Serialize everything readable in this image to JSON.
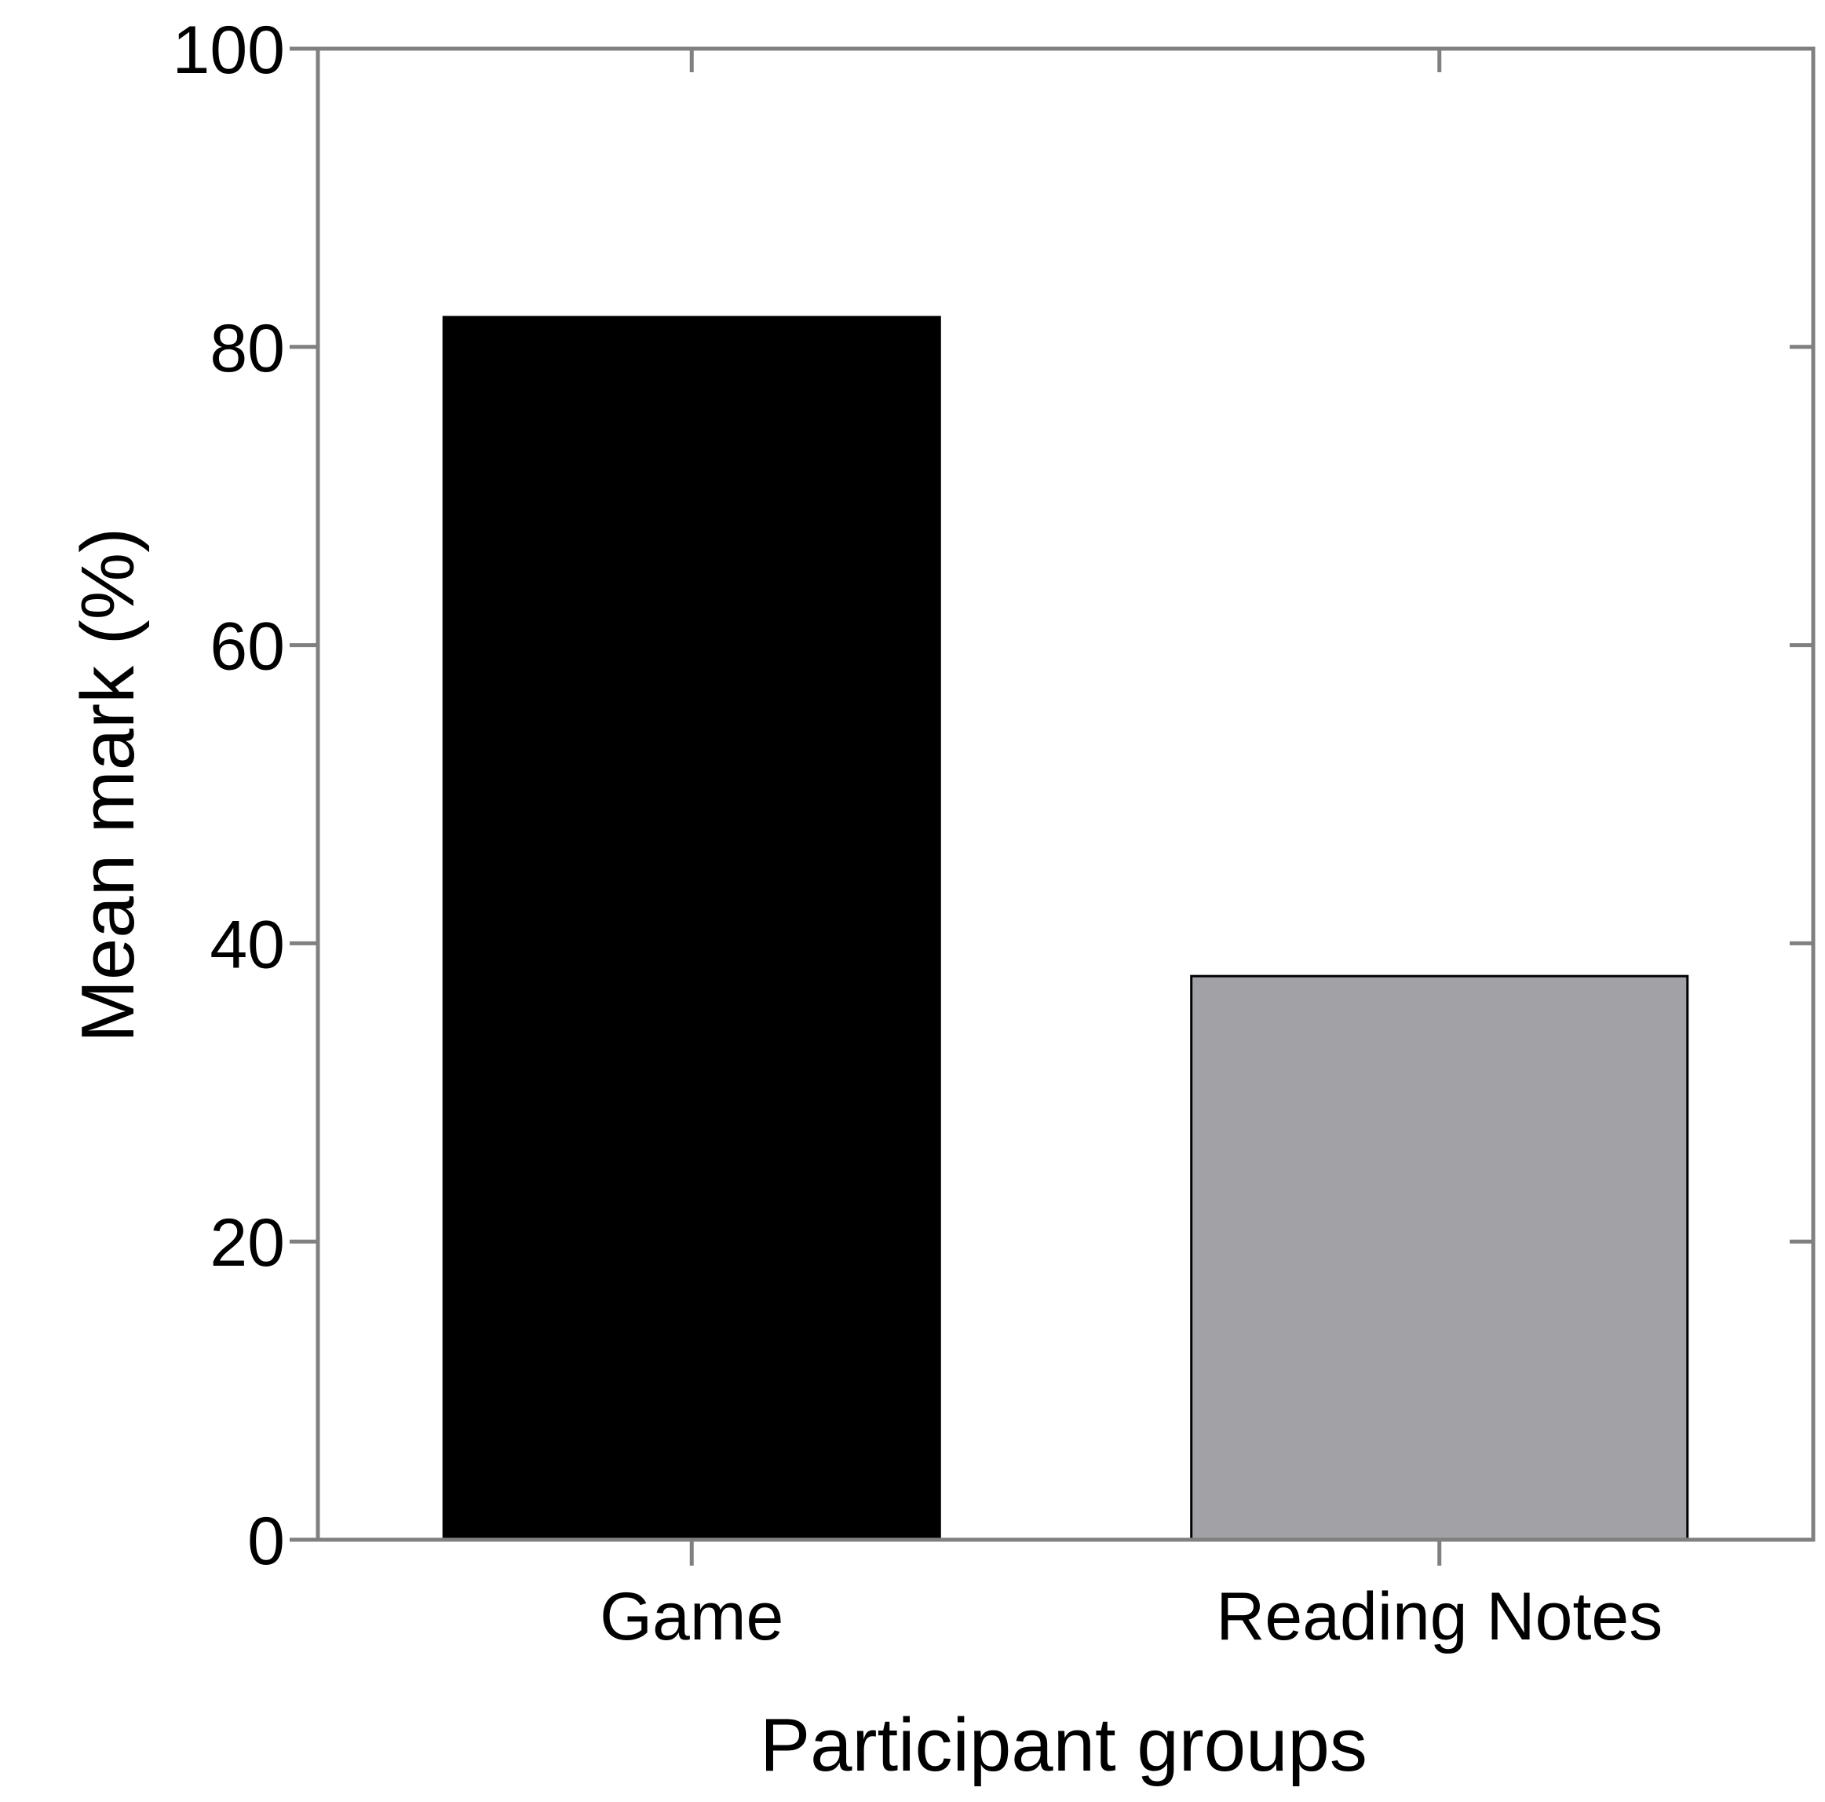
{
  "chart_data": {
    "type": "bar",
    "title": "",
    "xlabel": "Participant groups",
    "ylabel": "Mean mark (%)",
    "categories": [
      "Game",
      "Reading Notes"
    ],
    "values": [
      82,
      37.8
    ],
    "bar_colors": [
      "#000000",
      "#a2a1a5"
    ],
    "ylim": [
      0,
      100
    ],
    "yticks": [
      0,
      20,
      40,
      60,
      80,
      100
    ],
    "ytick_labels": [
      "0",
      "20",
      "40",
      "60",
      "80",
      "100"
    ],
    "grid": false,
    "legend": "none",
    "axis_color": "#808080"
  }
}
